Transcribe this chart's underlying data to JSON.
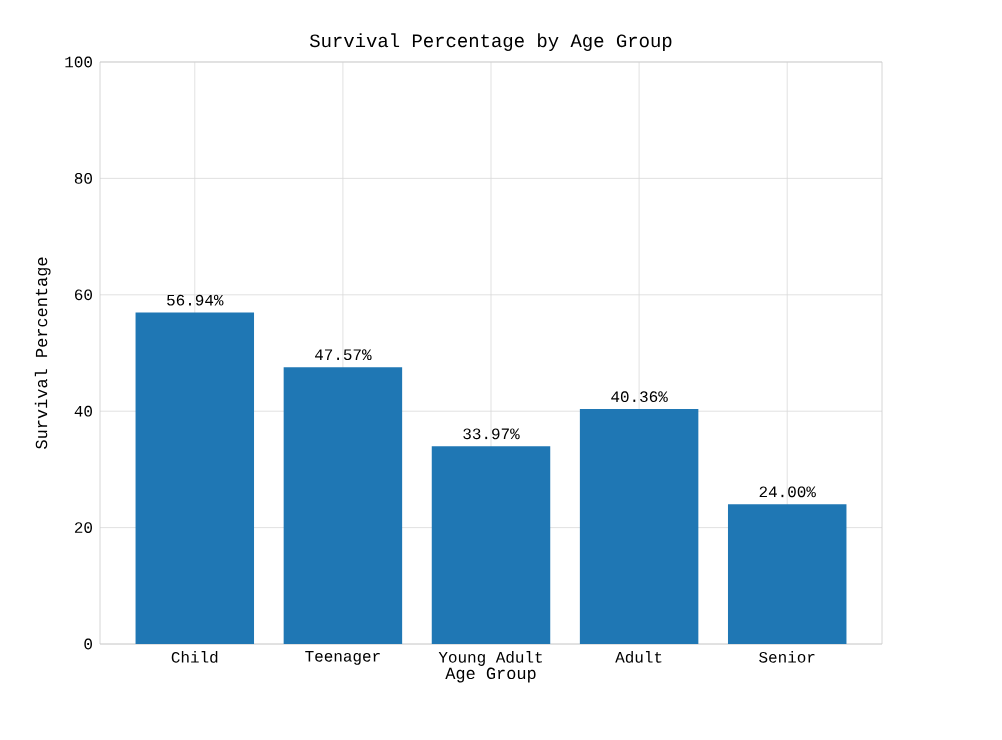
{
  "chart_data": {
    "type": "bar",
    "title": "Survival Percentage by Age Group",
    "xlabel": "Age Group",
    "ylabel": "Survival Percentage",
    "categories": [
      "Child",
      "Teenager",
      "Young Adult",
      "Adult",
      "Senior"
    ],
    "values": [
      56.94,
      47.57,
      33.97,
      40.36,
      24.0
    ],
    "value_labels": [
      "56.94%",
      "47.57%",
      "33.97%",
      "40.36%",
      "24.00%"
    ],
    "color": "#1f77b4",
    "ylim": [
      0,
      100
    ],
    "yticks": [
      0,
      20,
      40,
      60,
      80,
      100
    ],
    "grid": true
  }
}
